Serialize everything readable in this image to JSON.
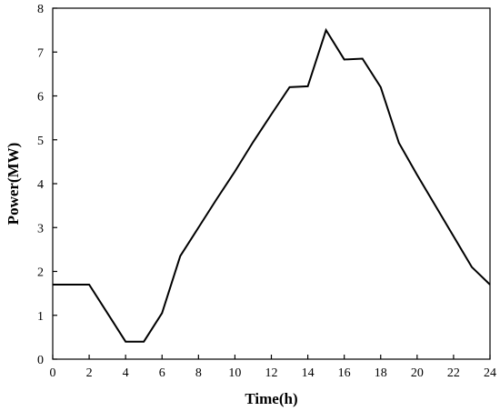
{
  "chart_data": {
    "type": "line",
    "xlabel": "Time(h)",
    "ylabel": "Power(MW)",
    "xlim": [
      0,
      24
    ],
    "ylim": [
      0,
      8
    ],
    "xticks": [
      0,
      2,
      4,
      6,
      8,
      10,
      12,
      14,
      16,
      18,
      20,
      22,
      24
    ],
    "yticks": [
      0,
      1,
      2,
      3,
      4,
      5,
      6,
      7,
      8
    ],
    "grid": false,
    "series": [
      {
        "color": "#000000",
        "x": [
          0,
          1,
          2,
          3,
          4,
          5,
          6,
          7,
          8,
          9,
          10,
          11,
          12,
          13,
          14,
          15,
          16,
          17,
          18,
          19,
          20,
          21,
          22,
          23,
          24
        ],
        "y": [
          1.7,
          1.7,
          1.7,
          1.05,
          0.4,
          0.4,
          1.05,
          2.35,
          3.0,
          3.65,
          4.28,
          4.95,
          5.58,
          6.2,
          6.22,
          7.5,
          6.83,
          6.85,
          6.2,
          4.93,
          4.2,
          3.5,
          2.8,
          2.1,
          1.7
        ]
      }
    ]
  }
}
